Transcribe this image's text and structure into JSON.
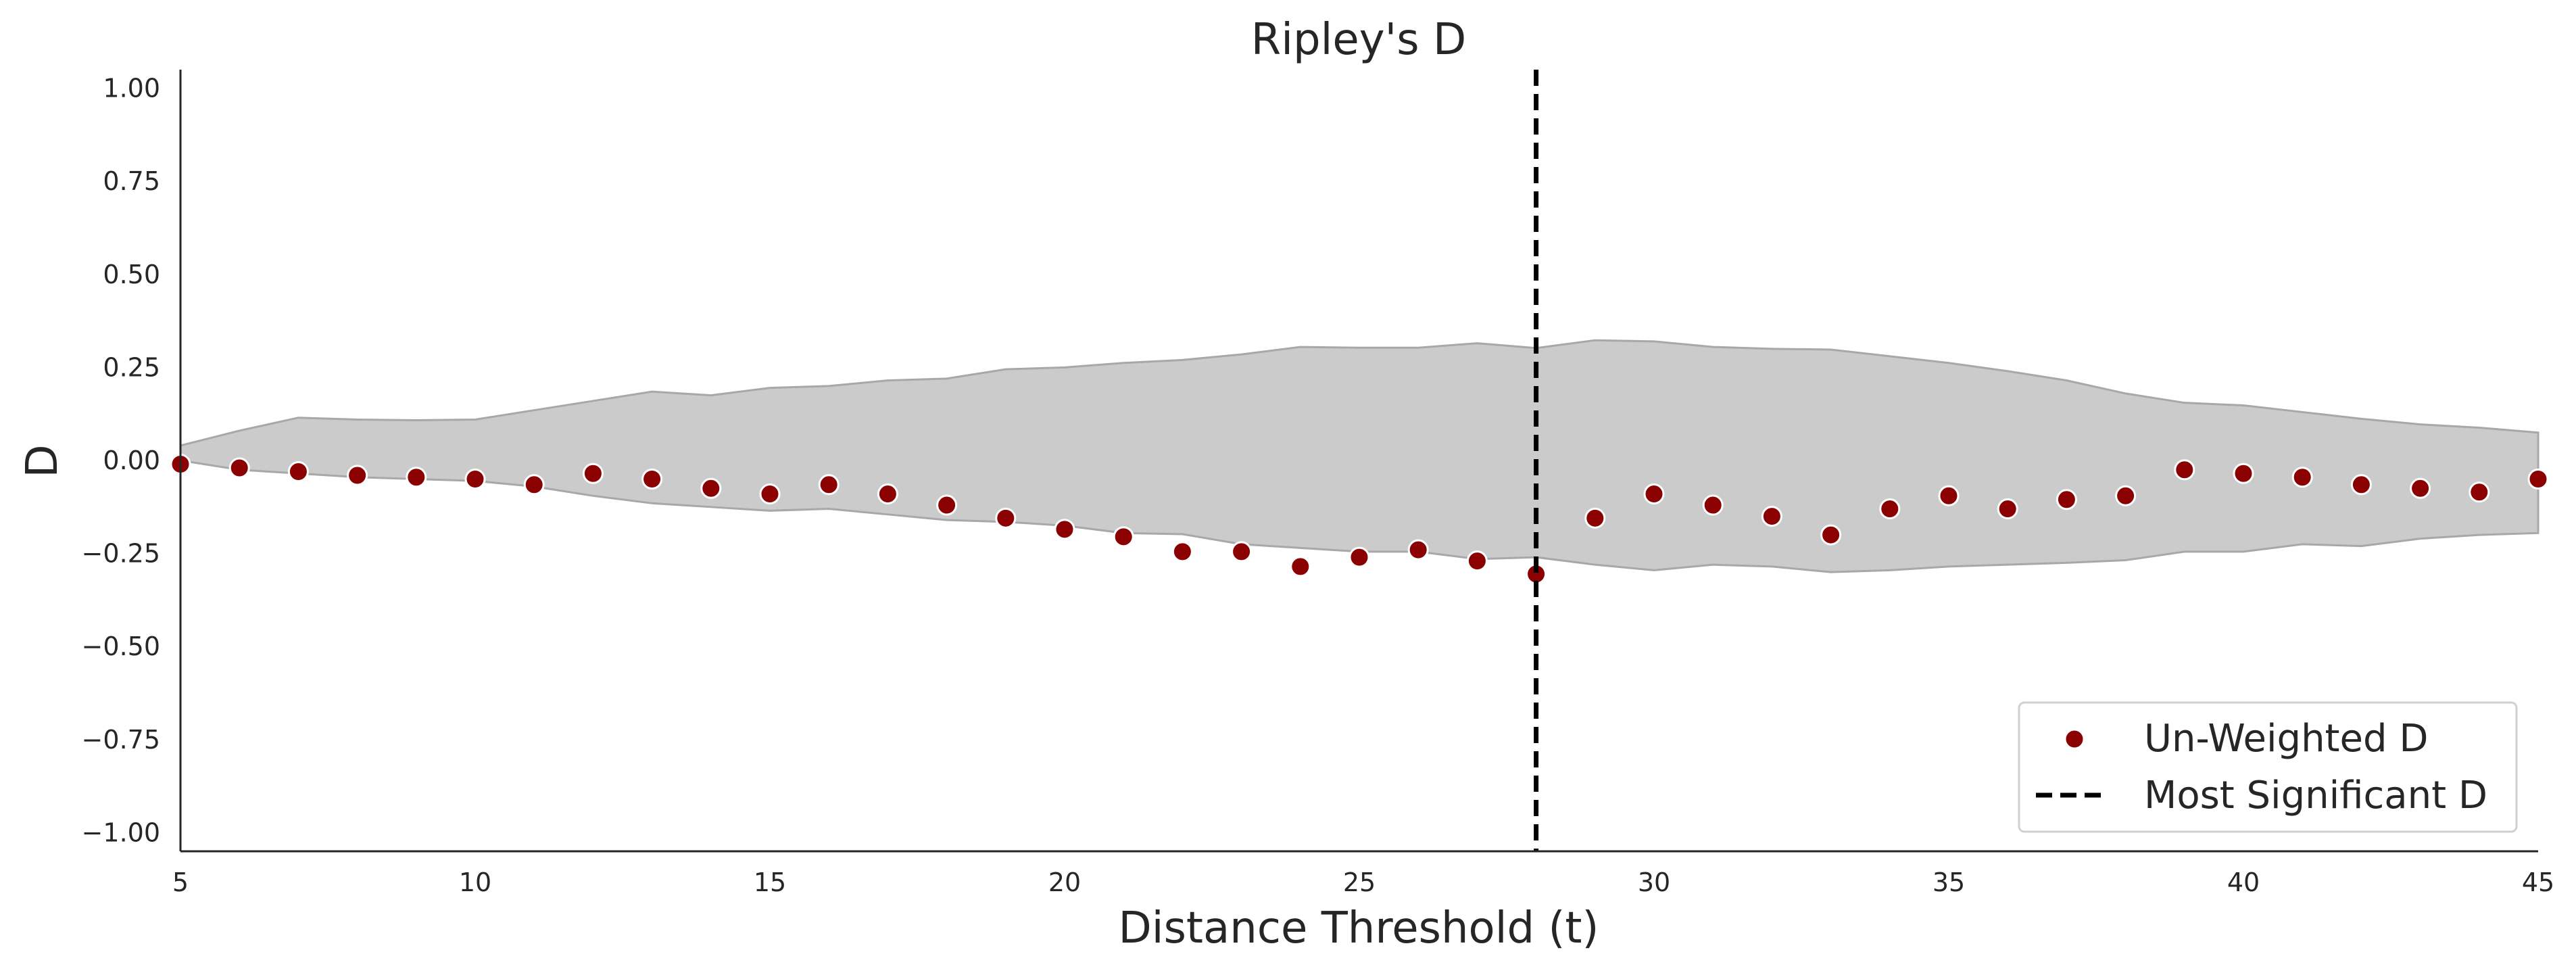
{
  "chart_data": {
    "type": "scatter",
    "title": "Ripley's D",
    "xlabel": "Distance Threshold (t)",
    "ylabel": "D",
    "xlim": [
      5,
      45
    ],
    "ylim": [
      -1.05,
      1.05
    ],
    "xticks": [
      5,
      10,
      15,
      20,
      25,
      30,
      35,
      40,
      45
    ],
    "yticks": [
      1.0,
      0.75,
      0.5,
      0.25,
      0.0,
      -0.25,
      -0.5,
      -0.75,
      -1.0
    ],
    "xtick_labels": [
      "5",
      "10",
      "15",
      "20",
      "25",
      "30",
      "35",
      "40",
      "45"
    ],
    "ytick_labels": [
      "1.00",
      "0.75",
      "0.50",
      "0.25",
      "0.00",
      "−0.25",
      "−0.50",
      "−0.75",
      "−1.00"
    ],
    "grid": false,
    "legend_position": "bottom-right",
    "series": [
      {
        "name": "Un-Weighted D",
        "kind": "scatter",
        "color": "#8b0000",
        "x": [
          5,
          6,
          7,
          8,
          9,
          10,
          11,
          12,
          13,
          14,
          15,
          16,
          17,
          18,
          19,
          20,
          21,
          22,
          23,
          24,
          25,
          26,
          27,
          28,
          29,
          30,
          31,
          32,
          33,
          34,
          35,
          36,
          37,
          38,
          39,
          40,
          41,
          42,
          43,
          44,
          45
        ],
        "y": [
          -0.01,
          -0.02,
          -0.03,
          -0.04,
          -0.045,
          -0.05,
          -0.065,
          -0.035,
          -0.05,
          -0.075,
          -0.09,
          -0.065,
          -0.09,
          -0.12,
          -0.155,
          -0.185,
          -0.205,
          -0.245,
          -0.245,
          -0.285,
          -0.26,
          -0.24,
          -0.27,
          -0.305,
          -0.155,
          -0.09,
          -0.12,
          -0.15,
          -0.2,
          -0.13,
          -0.095,
          -0.13,
          -0.105,
          -0.095,
          -0.025,
          -0.035,
          -0.045,
          -0.065,
          -0.075,
          -0.085,
          -0.05
        ]
      },
      {
        "name": "Most Significant D",
        "kind": "vline",
        "color": "#000000",
        "x": 28
      }
    ],
    "envelope": {
      "color": "#cbcbcb",
      "edge_color": "#a8a8a8",
      "x": [
        5,
        6,
        7,
        8,
        9,
        10,
        11,
        12,
        13,
        14,
        15,
        16,
        17,
        18,
        19,
        20,
        21,
        22,
        23,
        24,
        25,
        26,
        27,
        28,
        29,
        30,
        31,
        32,
        33,
        34,
        35,
        36,
        37,
        38,
        39,
        40,
        41,
        42,
        43,
        44,
        45
      ],
      "upper": [
        0.04,
        0.08,
        0.115,
        0.11,
        0.108,
        0.11,
        0.135,
        0.16,
        0.185,
        0.175,
        0.195,
        0.2,
        0.215,
        0.22,
        0.245,
        0.25,
        0.262,
        0.27,
        0.285,
        0.305,
        0.303,
        0.303,
        0.315,
        0.302,
        0.323,
        0.32,
        0.305,
        0.3,
        0.298,
        0.28,
        0.262,
        0.24,
        0.215,
        0.18,
        0.155,
        0.148,
        0.13,
        0.112,
        0.097,
        0.088,
        0.075
      ],
      "lower": [
        0.0,
        -0.025,
        -0.035,
        -0.045,
        -0.05,
        -0.055,
        -0.07,
        -0.095,
        -0.115,
        -0.125,
        -0.135,
        -0.13,
        -0.145,
        -0.16,
        -0.165,
        -0.175,
        -0.195,
        -0.198,
        -0.225,
        -0.235,
        -0.245,
        -0.245,
        -0.265,
        -0.26,
        -0.28,
        -0.295,
        -0.28,
        -0.285,
        -0.3,
        -0.295,
        -0.285,
        -0.28,
        -0.275,
        -0.268,
        -0.245,
        -0.245,
        -0.225,
        -0.23,
        -0.21,
        -0.2,
        -0.195
      ]
    }
  }
}
